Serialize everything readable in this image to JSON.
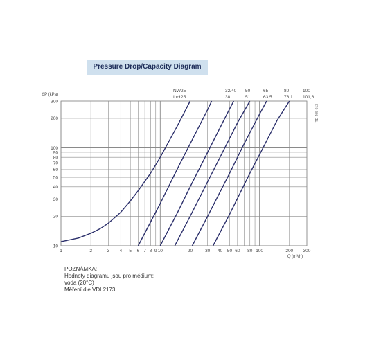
{
  "header": {
    "title": "Pressure Drop/Capacity Diagram"
  },
  "side_code": "TD 405-013",
  "note": {
    "heading": "POZNÁMKA:",
    "lines": [
      "Hodnoty diagramu jsou pro médium:",
      "voda (20°C)",
      "Měření dle VDI 2173"
    ]
  },
  "colors": {
    "curve": "#2b2f6b",
    "grid": "#8a8a8a",
    "title_band": "#cfe0ee"
  },
  "chart_data": {
    "type": "line",
    "title": "Pressure Drop/Capacity Diagram",
    "xlabel": "Q (m³/h)",
    "ylabel": "ΔP (kPa)",
    "x_scale": "log",
    "y_scale": "log",
    "xlim": [
      1,
      300
    ],
    "ylim": [
      10,
      300
    ],
    "grid": true,
    "x_ticks": [
      "1",
      "2",
      "3",
      "4",
      "5",
      "6",
      "7",
      "8",
      "9",
      "10",
      "20",
      "30",
      "40",
      "50",
      "60",
      "80",
      "100",
      "200",
      "300"
    ],
    "y_ticks": [
      "10",
      "20",
      "30",
      "40",
      "50",
      "60",
      "70",
      "80",
      "90",
      "100",
      "200",
      "300"
    ],
    "size_rows": [
      {
        "label": "NW",
        "values": [
          "25",
          "32/40",
          "50",
          "65",
          "80",
          "100"
        ]
      },
      {
        "label": "Inch",
        "values": [
          "25",
          "38",
          "51",
          "63,5",
          "76,1",
          "101,6"
        ]
      }
    ],
    "series": [
      {
        "name": "25",
        "points": [
          [
            1,
            11
          ],
          [
            1.5,
            12
          ],
          [
            2,
            13.4
          ],
          [
            2.5,
            15
          ],
          [
            3,
            17
          ],
          [
            3.5,
            19.5
          ],
          [
            4,
            22
          ],
          [
            5,
            28.7
          ],
          [
            6,
            36.5
          ],
          [
            7,
            45.5
          ],
          [
            8,
            55
          ],
          [
            10,
            80
          ],
          [
            15,
            170
          ],
          [
            20,
            300
          ]
        ]
      },
      {
        "name": "32/40",
        "points": [
          [
            6,
            10
          ],
          [
            10,
            27
          ],
          [
            15,
            62
          ],
          [
            20,
            110
          ],
          [
            30,
            245
          ],
          [
            33,
            300
          ]
        ]
      },
      {
        "name": "50",
        "points": [
          [
            10,
            10
          ],
          [
            15,
            22
          ],
          [
            20,
            40
          ],
          [
            30,
            90
          ],
          [
            40,
            160
          ],
          [
            50,
            250
          ],
          [
            55,
            300
          ]
        ]
      },
      {
        "name": "65",
        "points": [
          [
            14,
            10
          ],
          [
            20,
            20
          ],
          [
            30,
            45
          ],
          [
            40,
            80
          ],
          [
            60,
            180
          ],
          [
            80,
            300
          ]
        ]
      },
      {
        "name": "80",
        "points": [
          [
            21,
            10
          ],
          [
            30,
            20
          ],
          [
            50,
            55
          ],
          [
            70,
            110
          ],
          [
            100,
            220
          ],
          [
            118,
            300
          ]
        ]
      },
      {
        "name": "100",
        "points": [
          [
            34,
            10
          ],
          [
            50,
            21
          ],
          [
            80,
            55
          ],
          [
            100,
            85
          ],
          [
            150,
            190
          ],
          [
            200,
            300
          ]
        ]
      }
    ]
  }
}
